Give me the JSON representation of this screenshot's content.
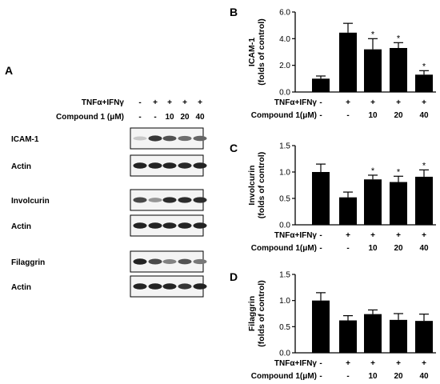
{
  "panel_letters": {
    "A": "A",
    "B": "B",
    "C": "C",
    "D": "D"
  },
  "treatment": {
    "labels": [
      "TNFα+IFNγ",
      "Compound 1 (μM)"
    ],
    "chart_labels": [
      "TNFα+IFNγ",
      "Compound 1(μM)"
    ],
    "rows": [
      [
        "-",
        "+",
        "+",
        "+",
        "+"
      ],
      [
        "-",
        "-",
        "10",
        "20",
        "40"
      ]
    ]
  },
  "blot": {
    "lanes": 5,
    "strips": [
      {
        "label": "ICAM-1",
        "intensity": [
          0.08,
          0.85,
          0.7,
          0.55,
          0.6
        ]
      },
      {
        "label": "Actin",
        "intensity": [
          0.95,
          0.95,
          0.95,
          0.92,
          0.95
        ]
      },
      {
        "label": "Involcurin",
        "intensity": [
          0.75,
          0.35,
          0.9,
          0.9,
          0.9
        ]
      },
      {
        "label": "Actin",
        "intensity": [
          0.95,
          0.95,
          0.95,
          0.95,
          0.95
        ]
      },
      {
        "label": "Filaggrin",
        "intensity": [
          0.95,
          0.75,
          0.45,
          0.7,
          0.5
        ]
      },
      {
        "label": "Actin",
        "intensity": [
          0.95,
          0.95,
          0.95,
          0.85,
          0.95
        ]
      }
    ]
  },
  "significance_marker": "*",
  "chart_data": [
    {
      "type": "bar",
      "panel": "B",
      "categories": [
        "Control",
        "TNFα+IFNγ",
        "Compound 1 10 μM",
        "Compound 1 20 μM",
        "Compound 1 40 μM"
      ],
      "values": [
        1.0,
        4.45,
        3.2,
        3.3,
        1.3
      ],
      "errors": [
        0.2,
        0.7,
        0.8,
        0.4,
        0.3
      ],
      "significant": [
        false,
        false,
        true,
        true,
        true
      ],
      "ylabel": [
        "ICAM-1",
        "(folds of control)"
      ],
      "ylim": [
        0,
        6
      ],
      "yticks": [
        0,
        2,
        4,
        6
      ],
      "ytick_labels": [
        "0.0",
        "2.0",
        "4.0",
        "6.0"
      ]
    },
    {
      "type": "bar",
      "panel": "C",
      "categories": [
        "Control",
        "TNFα+IFNγ",
        "Compound 1 10 μM",
        "Compound 1 20 μM",
        "Compound 1 40 μM"
      ],
      "values": [
        1.0,
        0.52,
        0.86,
        0.81,
        0.91
      ],
      "errors": [
        0.15,
        0.1,
        0.08,
        0.11,
        0.13
      ],
      "significant": [
        false,
        false,
        true,
        true,
        true
      ],
      "ylabel": [
        "Involcurin",
        "(folds of control)"
      ],
      "ylim": [
        0,
        1.5
      ],
      "yticks": [
        0,
        0.5,
        1.0,
        1.5
      ],
      "ytick_labels": [
        "0.0",
        "0.5",
        "1.0",
        "1.5"
      ]
    },
    {
      "type": "bar",
      "panel": "D",
      "categories": [
        "Control",
        "TNFα+IFNγ",
        "Compound 1 10 μM",
        "Compound 1 20 μM",
        "Compound 1 40 μM"
      ],
      "values": [
        1.0,
        0.62,
        0.74,
        0.63,
        0.61
      ],
      "errors": [
        0.15,
        0.09,
        0.08,
        0.12,
        0.13
      ],
      "significant": [
        false,
        false,
        false,
        false,
        false
      ],
      "ylabel": [
        "Filaggrin",
        "(folds of control)"
      ],
      "ylim": [
        0,
        1.5
      ],
      "yticks": [
        0,
        0.5,
        1.0,
        1.5
      ],
      "ytick_labels": [
        "0.0",
        "0.5",
        "1.0",
        "1.5"
      ]
    }
  ]
}
